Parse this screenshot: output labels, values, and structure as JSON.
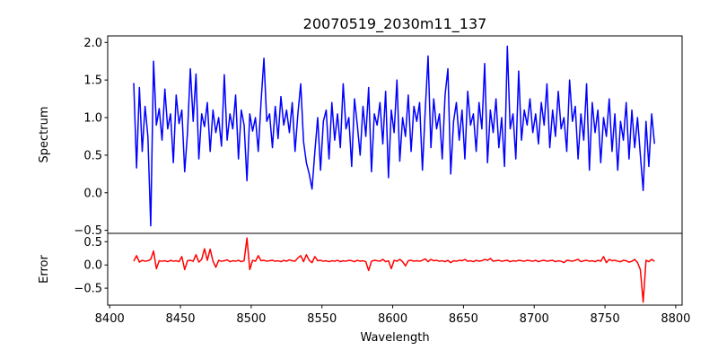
{
  "chart_data": [
    {
      "type": "line",
      "title": "20070519_2030m11_137",
      "xlabel": "",
      "ylabel": "Spectrum",
      "xlim": [
        8398.6,
        8804.5
      ],
      "ylim": [
        -0.54,
        2.087
      ],
      "yticks": [
        "2.0",
        "1.5",
        "1.0",
        "0.5",
        "0.0",
        "−0.5"
      ],
      "ytick_values": [
        2.0,
        1.5,
        1.0,
        0.5,
        0.0,
        -0.5
      ],
      "color": "#0000ff",
      "x_start": 8417,
      "x_step": 2,
      "y": [
        1.46,
        0.33,
        1.4,
        0.55,
        1.15,
        0.75,
        -0.44,
        1.75,
        0.9,
        1.12,
        0.7,
        1.38,
        0.85,
        1.05,
        0.4,
        1.3,
        0.92,
        1.1,
        0.28,
        0.8,
        1.65,
        0.95,
        1.58,
        0.45,
        1.05,
        0.88,
        1.2,
        0.55,
        1.1,
        0.8,
        1.0,
        0.62,
        1.57,
        0.7,
        1.05,
        0.85,
        1.3,
        0.45,
        1.1,
        0.9,
        0.16,
        1.05,
        0.82,
        1.0,
        0.55,
        1.22,
        1.79,
        0.95,
        1.05,
        0.6,
        1.15,
        0.72,
        1.28,
        0.9,
        1.1,
        0.8,
        1.2,
        0.55,
        1.05,
        1.45,
        0.68,
        0.4,
        0.25,
        0.05,
        0.55,
        1.0,
        0.3,
        0.95,
        1.1,
        0.45,
        1.2,
        0.7,
        1.05,
        0.6,
        1.45,
        0.85,
        1.0,
        0.35,
        1.25,
        0.9,
        0.5,
        1.15,
        0.75,
        1.4,
        0.28,
        1.05,
        0.9,
        1.2,
        0.65,
        1.35,
        0.2,
        1.1,
        0.8,
        1.5,
        0.42,
        1.0,
        0.75,
        1.3,
        0.55,
        1.15,
        0.95,
        1.2,
        0.3,
        1.1,
        1.82,
        0.6,
        1.25,
        0.85,
        1.05,
        0.45,
        1.3,
        1.65,
        0.25,
        0.95,
        1.2,
        0.7,
        1.1,
        0.45,
        1.35,
        0.9,
        1.05,
        0.55,
        1.2,
        0.85,
        1.72,
        0.4,
        1.1,
        0.8,
        1.25,
        0.6,
        1.0,
        0.35,
        1.95,
        0.85,
        1.05,
        0.45,
        1.62,
        0.7,
        1.1,
        0.9,
        1.25,
        0.8,
        1.05,
        0.65,
        1.2,
        0.9,
        1.45,
        0.6,
        1.1,
        0.75,
        1.35,
        0.85,
        1.0,
        0.55,
        1.5,
        0.95,
        1.15,
        0.45,
        1.05,
        0.7,
        1.45,
        0.3,
        1.2,
        0.8,
        1.1,
        0.4,
        1.0,
        0.75,
        1.25,
        0.55,
        1.05,
        0.3,
        0.95,
        0.7,
        1.2,
        0.45,
        1.1,
        0.6,
        1.0,
        0.5,
        0.03,
        0.95,
        0.35,
        1.05,
        0.65
      ]
    },
    {
      "type": "line",
      "xlabel": "Wavelength",
      "ylabel": "Error",
      "xlim": [
        8398.6,
        8804.5
      ],
      "ylim": [
        -0.865,
        0.68
      ],
      "xticks": [
        "8400",
        "8450",
        "8500",
        "8550",
        "8600",
        "8650",
        "8700",
        "8750",
        "8800"
      ],
      "xtick_values": [
        8400,
        8450,
        8500,
        8550,
        8600,
        8650,
        8700,
        8750,
        8800
      ],
      "yticks": [
        "0.5",
        "0.0",
        "−0.5"
      ],
      "ytick_values": [
        0.5,
        0.0,
        -0.5
      ],
      "color": "#ff0000",
      "x_start": 8417,
      "x_step": 2,
      "y": [
        0.08,
        0.2,
        0.06,
        0.1,
        0.08,
        0.09,
        0.12,
        0.3,
        -0.08,
        0.09,
        0.08,
        0.09,
        0.07,
        0.1,
        0.08,
        0.09,
        0.07,
        0.18,
        -0.1,
        0.09,
        0.1,
        0.08,
        0.22,
        0.06,
        0.12,
        0.35,
        0.1,
        0.34,
        0.08,
        -0.05,
        0.1,
        0.08,
        0.09,
        0.11,
        0.07,
        0.09,
        0.08,
        0.1,
        0.07,
        0.09,
        0.58,
        -0.1,
        0.1,
        0.08,
        0.2,
        0.09,
        0.1,
        0.08,
        0.09,
        0.1,
        0.08,
        0.09,
        0.07,
        0.1,
        0.08,
        0.11,
        0.09,
        0.08,
        0.15,
        0.2,
        0.07,
        0.22,
        0.1,
        0.05,
        0.18,
        0.09,
        0.1,
        0.08,
        0.09,
        0.07,
        0.09,
        0.08,
        0.1,
        0.07,
        0.09,
        0.08,
        0.1,
        0.09,
        0.07,
        0.1,
        0.08,
        0.09,
        0.07,
        -0.12,
        0.08,
        0.1,
        0.09,
        0.08,
        0.12,
        0.07,
        0.09,
        -0.08,
        0.1,
        0.08,
        0.12,
        0.07,
        -0.02,
        0.09,
        0.1,
        0.08,
        0.09,
        0.08,
        0.1,
        0.13,
        0.07,
        0.12,
        0.09,
        0.1,
        0.08,
        0.09,
        0.07,
        0.1,
        0.05,
        0.09,
        0.08,
        0.1,
        0.09,
        0.12,
        0.08,
        0.09,
        0.07,
        0.1,
        0.08,
        0.09,
        0.12,
        0.1,
        0.14,
        0.08,
        0.09,
        0.1,
        0.08,
        0.09,
        0.1,
        0.07,
        0.09,
        0.08,
        0.1,
        0.09,
        0.08,
        0.1,
        0.09,
        0.08,
        0.1,
        0.07,
        0.09,
        0.1,
        0.08,
        0.09,
        0.1,
        0.07,
        0.09,
        0.08,
        0.05,
        0.1,
        0.09,
        0.08,
        0.1,
        0.12,
        0.07,
        0.09,
        0.1,
        0.08,
        0.09,
        0.07,
        0.1,
        0.08,
        0.18,
        0.05,
        0.12,
        0.09,
        0.1,
        0.08,
        0.07,
        0.1,
        0.09,
        0.06,
        0.08,
        0.12,
        0.05,
        -0.1,
        -0.8,
        0.1,
        0.07,
        0.12,
        0.08
      ]
    }
  ]
}
